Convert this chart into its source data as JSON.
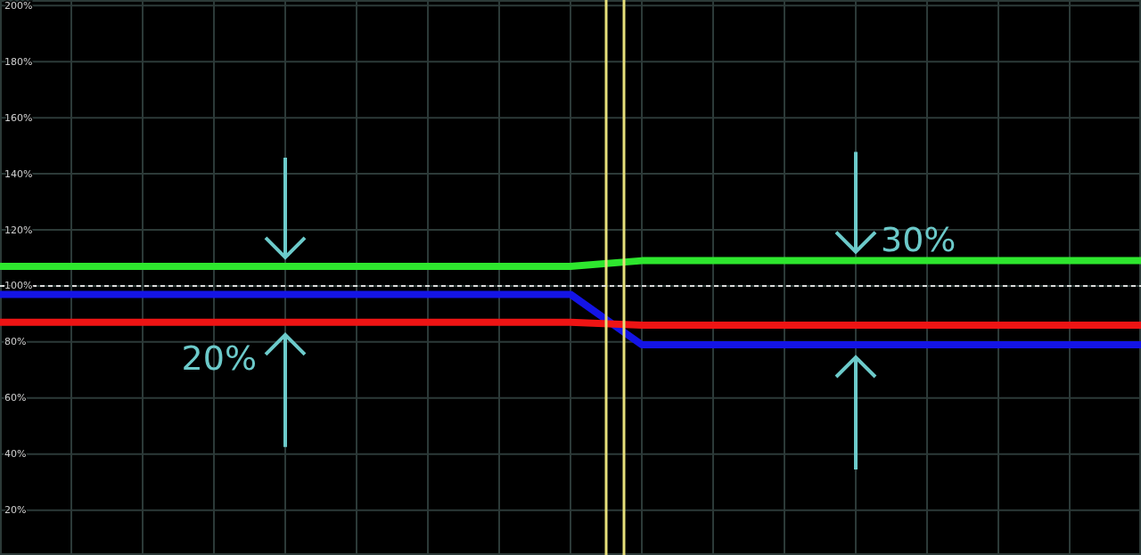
{
  "chart_data": {
    "type": "line",
    "categories": [
      null,
      null,
      null,
      null,
      null,
      null,
      null,
      null,
      null,
      null,
      null,
      null,
      null,
      null,
      null,
      null,
      null
    ],
    "ylim": [
      4,
      202
    ],
    "yticks": [
      {
        "value": 20,
        "label": "20%"
      },
      {
        "value": 40,
        "label": "40%"
      },
      {
        "value": 60,
        "label": "60%"
      },
      {
        "value": 80,
        "label": "80%"
      },
      {
        "value": 100,
        "label": "100%"
      },
      {
        "value": 120,
        "label": "120%"
      },
      {
        "value": 140,
        "label": "140%"
      },
      {
        "value": 160,
        "label": "160%"
      },
      {
        "value": 180,
        "label": "180%"
      },
      {
        "value": 200,
        "label": "200%"
      }
    ],
    "grid": true,
    "series": [
      {
        "color": "#2ee62e",
        "values": [
          107,
          107,
          107,
          107,
          107,
          107,
          107,
          107,
          107,
          109,
          109,
          109,
          109,
          109,
          109,
          109,
          109
        ]
      },
      {
        "color": "#1414e6",
        "values": [
          97,
          97,
          97,
          97,
          97,
          97,
          97,
          97,
          97,
          79,
          79,
          79,
          79,
          79,
          79,
          79,
          79
        ]
      },
      {
        "color": "#ee1414",
        "values": [
          87,
          87,
          87,
          87,
          87,
          87,
          87,
          87,
          87,
          86,
          86,
          86,
          86,
          86,
          86,
          86,
          86
        ]
      }
    ],
    "ref_lines": [
      {
        "axis": "y",
        "value": 100,
        "color": "#dcdcdc",
        "line_style": "dashed"
      }
    ],
    "annotations": [
      "20%",
      "30%"
    ]
  }
}
